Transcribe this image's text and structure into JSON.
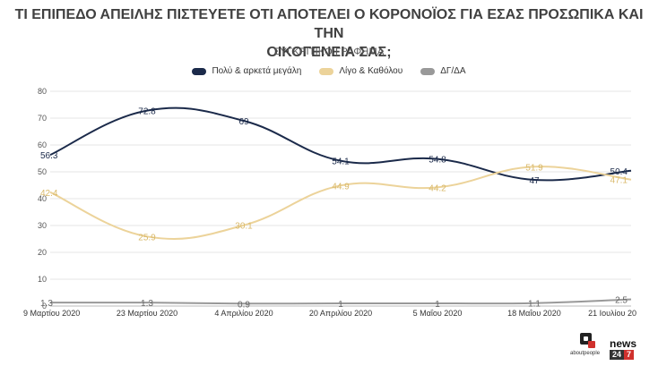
{
  "title_line1": "ΤΙ ΕΠΙΠΕΔΟ ΑΠΕΙΛΗΣ ΠΙΣΤΕΥΕΤΕ ΟΤΙ ΑΠΟΤΕΛΕΙ Ο ΚΟΡΟΝΟΪΟΣ ΓΙΑ ΕΣΑΣ ΠΡΟΣΩΠΙΚΑ ΚΑΙ ΤΗΝ",
  "title_line2": "ΟΙΚΟΓΕΝΕΙΑ ΣΑΣ;",
  "subtitle": "ΣΥΓΚΡΙΤΙΚΟ ΓΡΑΦΗΜΑ",
  "logos": {
    "about_text": "aboutpeople",
    "news_text": "news",
    "news_num1": "24",
    "news_num2": "7"
  },
  "chart_data": {
    "type": "line",
    "title": "ΤΙ ΕΠΙΠΕΔΟ ΑΠΕΙΛΗΣ ΠΙΣΤΕΥΕΤΕ ΟΤΙ ΑΠΟΤΕΛΕΙ Ο ΚΟΡΟΝΟΪΟΣ ΓΙΑ ΕΣΑΣ ΠΡΟΣΩΠΙΚΑ ΚΑΙ ΤΗΝ ΟΙΚΟΓΕΝΕΙΑ ΣΑΣ;",
    "subtitle": "ΣΥΓΚΡΙΤΙΚΟ ΓΡΑΦΗΜΑ",
    "categories": [
      "9 Μαρτίου 2020",
      "23 Μαρτίου 2020",
      "4 Απριλίου 2020",
      "20 Απριλίου 2020",
      "5 Μαΐου 2020",
      "18 Μαΐου 2020",
      "21 Ιουλίου 20"
    ],
    "series": [
      {
        "name": "Πολύ & αρκετά μεγάλη",
        "color": "#1b2a4a",
        "values": [
          56.3,
          72.8,
          69,
          54.1,
          54.8,
          47,
          50.4
        ],
        "labels": [
          "56.3",
          "72.8",
          "69",
          "54.1",
          "54.8",
          "47",
          "50.4"
        ]
      },
      {
        "name": "Λίγο & Καθόλου",
        "color": "#ecd39a",
        "values": [
          42.4,
          25.9,
          30.1,
          44.9,
          44.2,
          51.9,
          47.1
        ],
        "labels": [
          "42.4",
          "25.9",
          "30.1",
          "44.9",
          "44.2",
          "51.9",
          "47.1"
        ]
      },
      {
        "name": "ΔΓ/ΔΑ",
        "color": "#999999",
        "values": [
          1.3,
          1.3,
          0.9,
          1,
          1,
          1.1,
          2.5
        ],
        "labels": [
          "1.3",
          "1.3",
          "0.9",
          "1",
          "1",
          "1.1",
          "2.5"
        ]
      }
    ],
    "yticks": [
      "0",
      "10",
      "20",
      "30",
      "40",
      "50",
      "60",
      "70",
      "80"
    ],
    "ylim": [
      0,
      80
    ],
    "xlabel": "",
    "ylabel": "",
    "grid": true,
    "legend": "top-center"
  }
}
